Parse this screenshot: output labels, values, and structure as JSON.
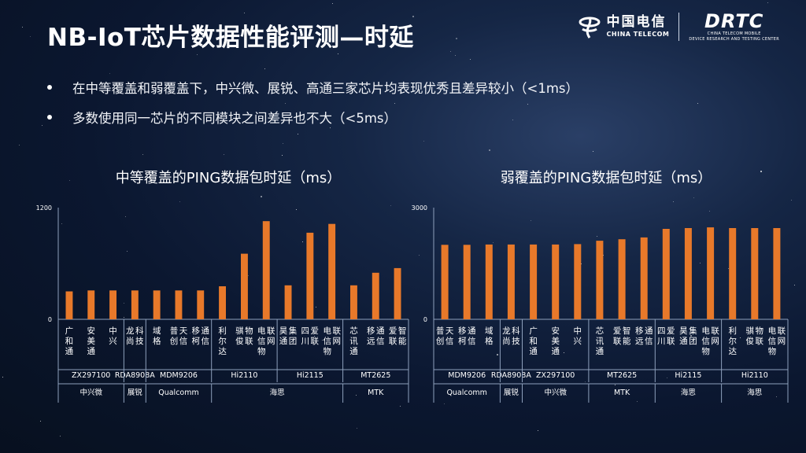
{
  "title": "NB-IoT芯片数据性能评测—时延",
  "logos": {
    "china_telecom_cn": "中国电信",
    "china_telecom_en": "CHINA TELECOM",
    "rtc_main": "DRTC",
    "rtc_sub_1": "CHINA TELECOM MOBILE",
    "rtc_sub_2": "DEVICE RESEARCH AND TESTING CENTER"
  },
  "bullets": [
    "在中等覆盖和弱覆盖下，中兴微、展锐、高通三家芯片均表现优秀且差异较小（<1ms）",
    "多数使用同一芯片的不同模块之间差异也不大（<5ms）"
  ],
  "chart_data": [
    {
      "type": "bar",
      "title": "中等覆盖的PING数据包时延（ms）",
      "ylim": [
        0,
        1200
      ],
      "yticks": [
        "1200",
        "0"
      ],
      "bar_color": "#e8792a",
      "categories": [
        "广和通",
        "安美通",
        "中兴",
        "龙尚科技",
        "域格",
        "普创天信",
        "移柯通信",
        "利尔达",
        "骐俊物联",
        "电信物联网",
        "昊通集团",
        "四川爱联",
        "电信物联网",
        "芯讯通",
        "移远通信",
        "爱联智能"
      ],
      "values": [
        300,
        310,
        310,
        310,
        310,
        310,
        310,
        355,
        705,
        1055,
        365,
        930,
        1025,
        365,
        500,
        550
      ],
      "groups": [
        {
          "chip": "ZX297100",
          "vendor": "中兴微",
          "count": 3
        },
        {
          "chip": "RDA8908A",
          "vendor": "展锐",
          "count": 1
        },
        {
          "chip": "MDM9206",
          "vendor": "Qualcomm",
          "count": 3
        },
        {
          "chip": "Hi2110",
          "vendor": "海思",
          "count": 3
        },
        {
          "chip": "Hi2115",
          "vendor": "海思",
          "count": 3
        },
        {
          "chip": "MT2625",
          "vendor": "MTK",
          "count": 3
        }
      ],
      "vendor_spans": [
        {
          "name": "中兴微",
          "count": 3
        },
        {
          "name": "展锐",
          "count": 1
        },
        {
          "name": "Qualcomm",
          "count": 3
        },
        {
          "name": "海思",
          "count": 6
        },
        {
          "name": "MTK",
          "count": 3
        }
      ]
    },
    {
      "type": "bar",
      "title": "弱覆盖的PING数据包时延（ms）",
      "ylim": [
        0,
        3000
      ],
      "yticks": [
        "3000",
        "0"
      ],
      "bar_color": "#e8792a",
      "categories": [
        "普创天信",
        "移柯通信",
        "域格",
        "龙尚科技",
        "广和通",
        "安美通",
        "中兴",
        "芯讯通",
        "爱联智能",
        "移远通信",
        "四川爱联",
        "昊通集团",
        "电信物联网",
        "利尔达",
        "骐俊物联",
        "电信物联网"
      ],
      "values": [
        2000,
        2000,
        2010,
        2010,
        2010,
        2010,
        2020,
        2110,
        2150,
        2200,
        2430,
        2450,
        2470,
        2450,
        2450,
        2450
      ],
      "groups": [
        {
          "chip": "MDM9206",
          "vendor": "Qualcomm",
          "count": 3
        },
        {
          "chip": "RDA8908A",
          "vendor": "展锐",
          "count": 1
        },
        {
          "chip": "ZX297100",
          "vendor": "中兴微",
          "count": 3
        },
        {
          "chip": "MT2625",
          "vendor": "MTK",
          "count": 3
        },
        {
          "chip": "Hi2115",
          "vendor": "海思",
          "count": 3
        },
        {
          "chip": "Hi2110",
          "vendor": "海思",
          "count": 3
        }
      ],
      "vendor_spans": [
        {
          "name": "Qualcomm",
          "count": 3
        },
        {
          "name": "展锐",
          "count": 1
        },
        {
          "name": "中兴微",
          "count": 3
        },
        {
          "name": "MTK",
          "count": 3
        },
        {
          "name": "海思",
          "count": 3
        },
        {
          "name": "海思",
          "count": 3
        }
      ]
    }
  ]
}
